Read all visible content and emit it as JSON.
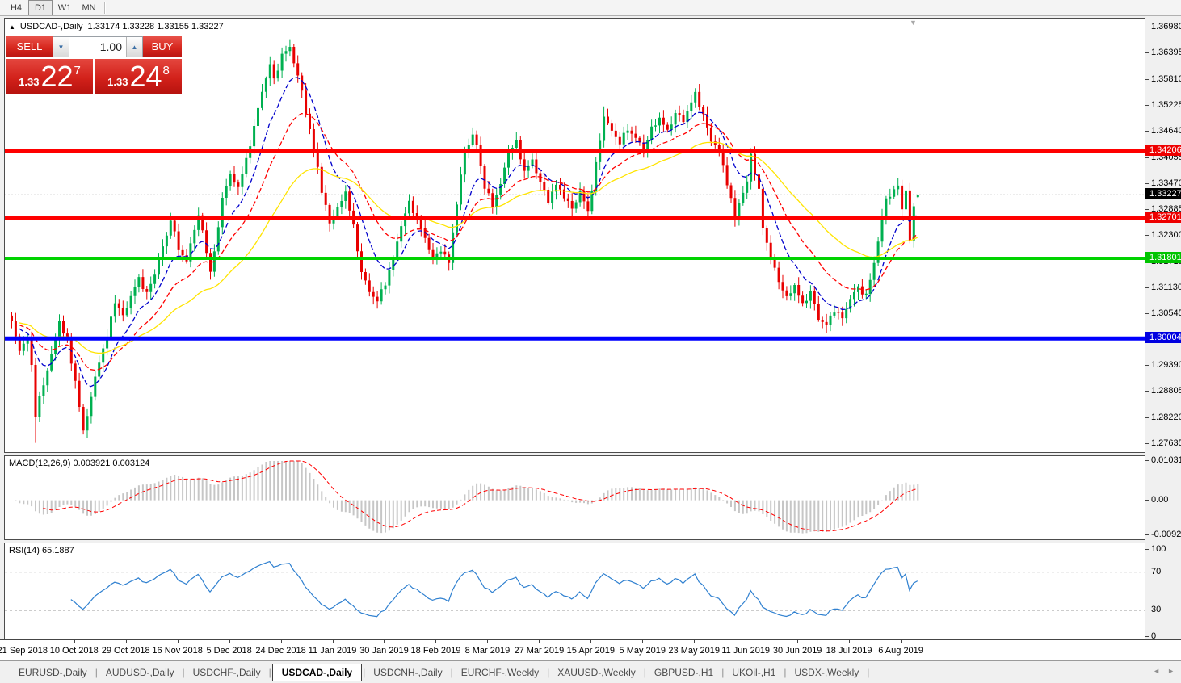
{
  "toolbar": {
    "timeframes": [
      {
        "label": "H4",
        "active": false
      },
      {
        "label": "D1",
        "active": true
      },
      {
        "label": "W1",
        "active": false
      },
      {
        "label": "MN",
        "active": false
      }
    ]
  },
  "chart_header": {
    "collapse_icon": "▲",
    "title": "USDCAD-,Daily",
    "ohlc_text": "1.33174 1.33228 1.33155 1.33227",
    "shift_marker": "▼"
  },
  "trade_panel": {
    "sell_label": "SELL",
    "buy_label": "BUY",
    "volume": "1.00",
    "spin_down": "▼",
    "spin_up": "▲",
    "sell_price": {
      "prefix": "1.33",
      "big": "22",
      "sup": "7"
    },
    "buy_price": {
      "prefix": "1.33",
      "big": "24",
      "sup": "8"
    }
  },
  "macd_label": {
    "name": "MACD(12,26,9)",
    "values": "0.003921 0.003124"
  },
  "rsi_label": {
    "name": "RSI(14)",
    "value": "65.1887"
  },
  "price_axis_ticks": [
    "1.36980",
    "1.36395",
    "1.35810",
    "1.35225",
    "1.34640",
    "1.34055",
    "1.33470",
    "1.32885",
    "1.32300",
    "1.31715",
    "1.31130",
    "1.30545",
    "1.29390",
    "1.28805",
    "1.28220",
    "1.27635"
  ],
  "macd_axis_ticks": [
    {
      "text": "0.010311",
      "value": 0.010311
    },
    {
      "text": "0.00",
      "value": 0.0
    },
    {
      "text": "-0.009203",
      "value": -0.009203
    }
  ],
  "rsi_axis_ticks": [
    {
      "text": "100",
      "value": 100
    },
    {
      "text": "70",
      "value": 70
    },
    {
      "text": "30",
      "value": 30
    },
    {
      "text": "0",
      "value": 0
    }
  ],
  "tabs": {
    "items": [
      "EURUSD-,Daily",
      "AUDUSD-,Daily",
      "USDCHF-,Daily",
      "USDCAD-,Daily",
      "USDCNH-,Daily",
      "EURCHF-,Weekly",
      "XAUUSD-,Weekly",
      "GBPUSD-,H1",
      "UKOil-,H1",
      "USDX-,Weekly"
    ],
    "active_index": 3,
    "scroll_left": "◄",
    "scroll_right": "►"
  },
  "chart_data": {
    "type": "candlestick",
    "symbol": "USDCAD-",
    "period": "Daily",
    "bars": 229,
    "bars_per_x_label": 13,
    "first_labeled_bar": 3,
    "current_bar": {
      "open": 1.33174,
      "high": 1.33228,
      "low": 1.33155,
      "close": 1.33227
    },
    "y_range": {
      "min": 1.27635,
      "max": 1.3698
    },
    "y_tick_step": 0.00585,
    "x_labels": [
      "21 Sep 2018",
      "10 Oct 2018",
      "29 Oct 2018",
      "16 Nov 2018",
      "5 Dec 2018",
      "24 Dec 2018",
      "11 Jan 2019",
      "30 Jan 2019",
      "18 Feb 2019",
      "8 Mar 2019",
      "27 Mar 2019",
      "15 Apr 2019",
      "5 May 2019",
      "23 May 2019",
      "11 Jun 2019",
      "30 Jun 2019",
      "18 Jul 2019",
      "6 Aug 2019"
    ],
    "close_anchors": [
      [
        0,
        1.3035
      ],
      [
        2,
        1.2975
      ],
      [
        4,
        1.3
      ],
      [
        5,
        1.294
      ],
      [
        6,
        1.283
      ],
      [
        7,
        1.2865
      ],
      [
        9,
        1.293
      ],
      [
        11,
        1.3
      ],
      [
        12,
        1.304
      ],
      [
        14,
        1.299
      ],
      [
        16,
        1.2905
      ],
      [
        18,
        1.279
      ],
      [
        20,
        1.287
      ],
      [
        22,
        1.295
      ],
      [
        24,
        1.3005
      ],
      [
        26,
        1.3085
      ],
      [
        28,
        1.305
      ],
      [
        30,
        1.3095
      ],
      [
        32,
        1.3135
      ],
      [
        34,
        1.31
      ],
      [
        36,
        1.3145
      ],
      [
        37,
        1.318
      ],
      [
        39,
        1.323
      ],
      [
        40,
        1.327
      ],
      [
        42,
        1.32
      ],
      [
        44,
        1.3175
      ],
      [
        46,
        1.3245
      ],
      [
        47,
        1.328
      ],
      [
        49,
        1.3195
      ],
      [
        50,
        1.315
      ],
      [
        52,
        1.3245
      ],
      [
        53,
        1.332
      ],
      [
        55,
        1.3365
      ],
      [
        57,
        1.334
      ],
      [
        59,
        1.34
      ],
      [
        61,
        1.3475
      ],
      [
        63,
        1.3555
      ],
      [
        65,
        1.3615
      ],
      [
        66,
        1.358
      ],
      [
        68,
        1.3635
      ],
      [
        70,
        1.3655
      ],
      [
        71,
        1.362
      ],
      [
        73,
        1.3555
      ],
      [
        75,
        1.3465
      ],
      [
        77,
        1.3385
      ],
      [
        78,
        1.333
      ],
      [
        80,
        1.326
      ],
      [
        82,
        1.329
      ],
      [
        84,
        1.333
      ],
      [
        86,
        1.325
      ],
      [
        88,
        1.315
      ],
      [
        90,
        1.3105
      ],
      [
        92,
        1.3085
      ],
      [
        94,
        1.3125
      ],
      [
        96,
        1.318
      ],
      [
        98,
        1.3255
      ],
      [
        100,
        1.3305
      ],
      [
        102,
        1.327
      ],
      [
        104,
        1.3225
      ],
      [
        106,
        1.318
      ],
      [
        108,
        1.32
      ],
      [
        110,
        1.317
      ],
      [
        112,
        1.3305
      ],
      [
        114,
        1.342
      ],
      [
        116,
        1.3455
      ],
      [
        117,
        1.3435
      ],
      [
        119,
        1.334
      ],
      [
        121,
        1.33
      ],
      [
        123,
        1.3345
      ],
      [
        125,
        1.342
      ],
      [
        127,
        1.344
      ],
      [
        129,
        1.3375
      ],
      [
        131,
        1.34
      ],
      [
        133,
        1.335
      ],
      [
        135,
        1.331
      ],
      [
        137,
        1.3345
      ],
      [
        139,
        1.332
      ],
      [
        141,
        1.329
      ],
      [
        143,
        1.333
      ],
      [
        145,
        1.3285
      ],
      [
        147,
        1.339
      ],
      [
        149,
        1.35
      ],
      [
        151,
        1.3465
      ],
      [
        153,
        1.344
      ],
      [
        155,
        1.347
      ],
      [
        157,
        1.345
      ],
      [
        159,
        1.3425
      ],
      [
        161,
        1.347
      ],
      [
        163,
        1.3495
      ],
      [
        165,
        1.3465
      ],
      [
        167,
        1.3505
      ],
      [
        169,
        1.349
      ],
      [
        171,
        1.353
      ],
      [
        172,
        1.355
      ],
      [
        174,
        1.35
      ],
      [
        176,
        1.3445
      ],
      [
        178,
        1.3425
      ],
      [
        180,
        1.335
      ],
      [
        182,
        1.327
      ],
      [
        183,
        1.3305
      ],
      [
        185,
        1.335
      ],
      [
        186,
        1.3415
      ],
      [
        188,
        1.333
      ],
      [
        189,
        1.325
      ],
      [
        191,
        1.318
      ],
      [
        193,
        1.313
      ],
      [
        195,
        1.309
      ],
      [
        197,
        1.312
      ],
      [
        199,
        1.3075
      ],
      [
        201,
        1.3105
      ],
      [
        203,
        1.3045
      ],
      [
        205,
        1.303
      ],
      [
        207,
        1.3065
      ],
      [
        209,
        1.3045
      ],
      [
        211,
        1.309
      ],
      [
        213,
        1.3115
      ],
      [
        215,
        1.3095
      ],
      [
        217,
        1.317
      ],
      [
        219,
        1.327
      ],
      [
        220,
        1.3315
      ],
      [
        222,
        1.333
      ],
      [
        223,
        1.3345
      ],
      [
        224,
        1.329
      ],
      [
        225,
        1.3335
      ],
      [
        226,
        1.3215
      ],
      [
        227,
        1.33
      ],
      [
        228,
        1.33227
      ]
    ],
    "wick_lows": [
      [
        6,
        1.2766
      ],
      [
        18,
        1.279
      ],
      [
        205,
        1.3016
      ]
    ],
    "wick_highs": [
      [
        70,
        1.3664
      ],
      [
        149,
        1.3521
      ],
      [
        223,
        1.3352
      ]
    ],
    "horizontal_lines": [
      {
        "price": 1.34206,
        "color": "#ff0000",
        "width": 5
      },
      {
        "price": 1.32701,
        "color": "#ff0000",
        "width": 5
      },
      {
        "price": 1.31801,
        "color": "#00d300",
        "width": 4
      },
      {
        "price": 1.30004,
        "color": "#0000ff",
        "width": 5
      }
    ],
    "current_price_line": {
      "price": 1.33227,
      "color": "#b4b4b4"
    },
    "axis_badges": [
      {
        "text": "1.34206",
        "price": 1.34206,
        "bg": "#ee0000"
      },
      {
        "text": "1.33227",
        "price": 1.33227,
        "bg": "#000000"
      },
      {
        "text": "1.32701",
        "price": 1.32701,
        "bg": "#ee0000"
      },
      {
        "text": "1.31801",
        "price": 1.31801,
        "bg": "#00c400"
      },
      {
        "text": "1.30004",
        "price": 1.30004,
        "bg": "#0000e0"
      }
    ],
    "moving_averages": [
      {
        "period": 10,
        "color": "#0000cc",
        "dashed": true
      },
      {
        "period": 21,
        "color": "#ff0000",
        "dashed": true
      },
      {
        "period": 45,
        "color": "#ffe400",
        "dashed": false
      }
    ],
    "indicators": [
      {
        "name": "MACD",
        "params": [
          12,
          26,
          9
        ],
        "display_values": [
          0.003921,
          0.003124
        ],
        "range": [
          -0.009203,
          0.010311
        ],
        "histogram_color": "#c6c6c6",
        "signal_color": "#ff0000"
      },
      {
        "name": "RSI",
        "params": [
          14
        ],
        "display_value": 65.1887,
        "levels": [
          70,
          30
        ],
        "range": [
          0,
          100
        ],
        "color": "#2f80d0",
        "level_color": "#bcbcbc"
      }
    ],
    "candle_colors": {
      "bull": "#00b050",
      "bear": "#e80000"
    }
  }
}
